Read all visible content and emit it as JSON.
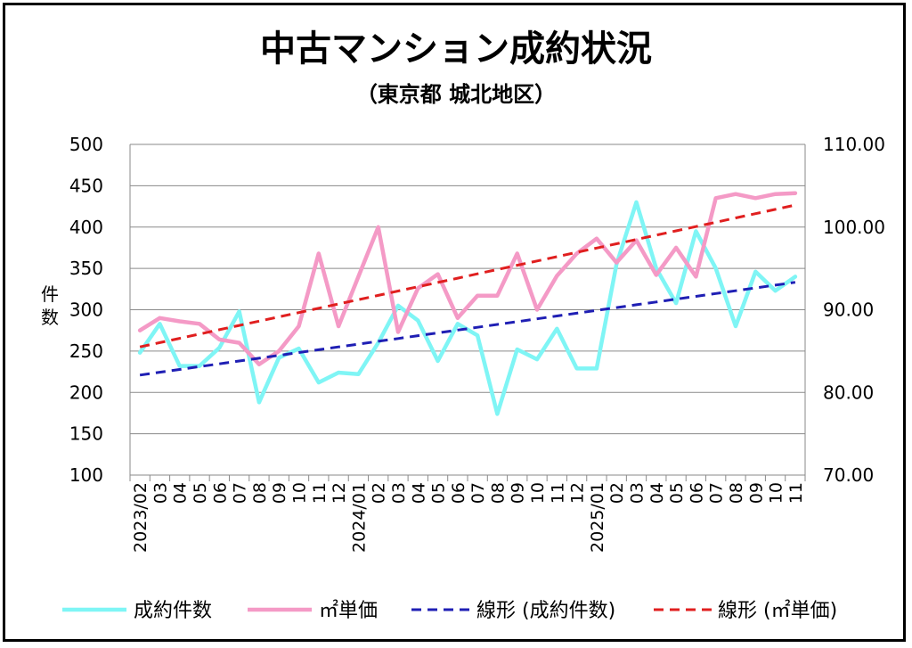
{
  "chart_data": {
    "type": "line",
    "title": "中古マンション成約状況",
    "subtitle": "（東京都 城北地区）",
    "ylabel_left": "件数",
    "ylim_left": [
      100,
      500
    ],
    "yticks_left": [
      "100",
      "150",
      "200",
      "250",
      "300",
      "350",
      "400",
      "450",
      "500"
    ],
    "ylim_right": [
      70,
      110
    ],
    "yticks_right": [
      "70.00",
      "80.00",
      "90.00",
      "100.00",
      "110.00"
    ],
    "x": [
      "2023/02",
      "03",
      "04",
      "05",
      "06",
      "07",
      "08",
      "09",
      "10",
      "11",
      "12",
      "2024/01",
      "02",
      "03",
      "04",
      "05",
      "06",
      "07",
      "08",
      "09",
      "10",
      "11",
      "12",
      "2025/01",
      "02",
      "03",
      "04",
      "05",
      "06",
      "07",
      "08",
      "09",
      "10",
      "11"
    ],
    "grid": true,
    "legend_position": "bottom",
    "series": [
      {
        "name": "成約件数",
        "axis": "left",
        "color": "#7ff5f5",
        "values": [
          248,
          283,
          232,
          232,
          254,
          298,
          188,
          242,
          253,
          212,
          224,
          222,
          260,
          305,
          287,
          238,
          283,
          269,
          174,
          252,
          240,
          277,
          229,
          229,
          355,
          430,
          350,
          308,
          395,
          350,
          280,
          346,
          323,
          340
        ]
      },
      {
        "name": "㎡単価",
        "axis": "right",
        "color": "#f49ac6",
        "values": [
          87.5,
          89.0,
          88.6,
          88.3,
          86.4,
          86.0,
          83.4,
          85.0,
          88.0,
          96.8,
          88.0,
          94.0,
          100.0,
          87.3,
          92.6,
          94.3,
          89.0,
          91.7,
          91.7,
          96.8,
          90.0,
          94.1,
          96.8,
          98.6,
          95.7,
          98.4,
          94.2,
          97.5,
          94.0,
          103.5,
          104.0,
          103.5,
          104.0,
          104.1
        ]
      },
      {
        "name": "線形 (成約件数)",
        "axis": "left",
        "color": "#1f1fb4",
        "dashed": true,
        "values": [
          221,
          224.4,
          227.8,
          231.2,
          234.6,
          238,
          241.4,
          244.8,
          248.2,
          251.6,
          255,
          258.4,
          261.8,
          265.2,
          268.6,
          272,
          275.4,
          278.8,
          282.2,
          285.6,
          289,
          292.4,
          295.8,
          299.2,
          302.6,
          306,
          309.4,
          312.8,
          316.2,
          319.6,
          323,
          326.4,
          329.8,
          333.2
        ]
      },
      {
        "name": "線形 (㎡単価)",
        "axis": "right",
        "color": "#e01f1f",
        "dashed": true,
        "values": [
          85.5,
          86.02,
          86.54,
          87.06,
          87.58,
          88.1,
          88.62,
          89.14,
          89.66,
          90.18,
          90.7,
          91.22,
          91.74,
          92.26,
          92.78,
          93.3,
          93.82,
          94.34,
          94.86,
          95.38,
          95.9,
          96.42,
          96.94,
          97.46,
          97.98,
          98.5,
          99.02,
          99.54,
          100.06,
          100.58,
          101.1,
          101.62,
          102.14,
          102.66
        ]
      }
    ]
  }
}
